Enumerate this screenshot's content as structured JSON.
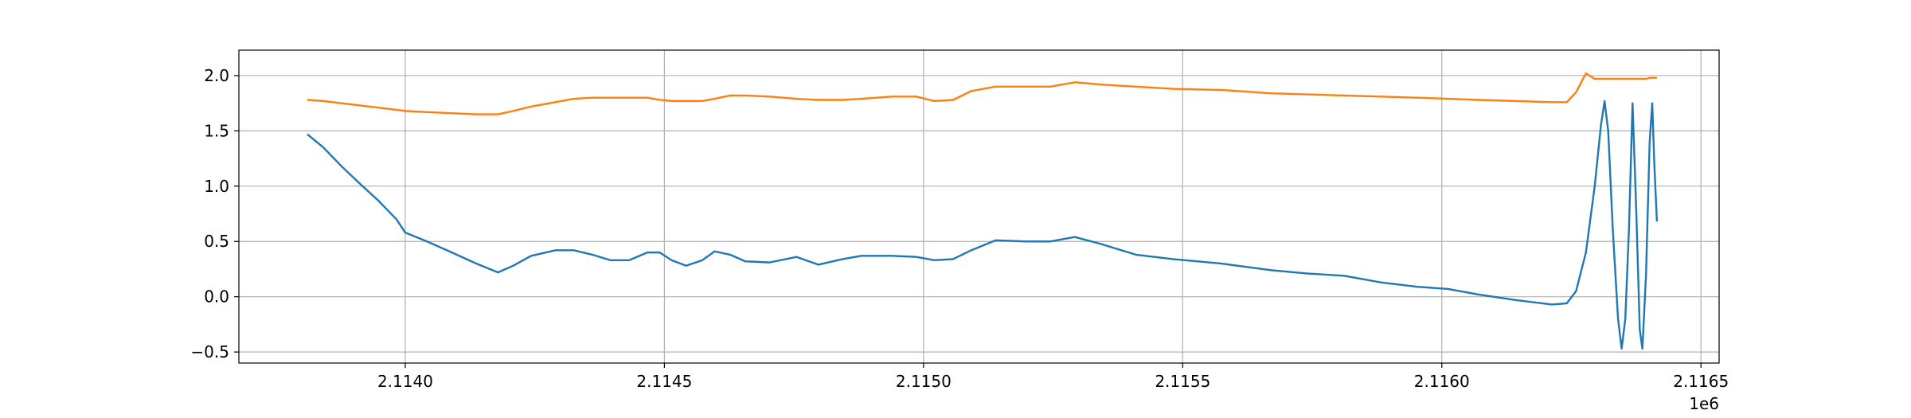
{
  "chart_data": {
    "type": "line",
    "x": [
      2113811,
      2113842,
      2113877,
      2113913,
      2113948,
      2113983,
      2114000,
      2114042,
      2114090,
      2114137,
      2114179,
      2114208,
      2114243,
      2114290,
      2114325,
      2114361,
      2114396,
      2114432,
      2114467,
      2114491,
      2114514,
      2114542,
      2114573,
      2114597,
      2114627,
      2114656,
      2114703,
      2114755,
      2114797,
      2114844,
      2114880,
      2114939,
      2114986,
      2115021,
      2115057,
      2115092,
      2115139,
      2115198,
      2115245,
      2115292,
      2115340,
      2115410,
      2115481,
      2115575,
      2115670,
      2115741,
      2115811,
      2115882,
      2115953,
      2116012,
      2116071,
      2116142,
      2116212,
      2116241,
      2116259,
      2116278,
      2116295,
      2116307,
      2116314,
      2116321,
      2116330,
      2116340,
      2116347,
      2116354,
      2116361,
      2116368,
      2116375,
      2116382,
      2116387,
      2116394,
      2116401,
      2116406,
      2116410,
      2116415
    ],
    "series": [
      {
        "color": "#1f77b4",
        "values": [
          1.47,
          1.35,
          1.18,
          1.02,
          0.87,
          0.7,
          0.58,
          0.5,
          0.4,
          0.3,
          0.22,
          0.28,
          0.37,
          0.42,
          0.42,
          0.38,
          0.33,
          0.33,
          0.4,
          0.4,
          0.33,
          0.28,
          0.33,
          0.41,
          0.38,
          0.32,
          0.31,
          0.36,
          0.29,
          0.34,
          0.37,
          0.37,
          0.36,
          0.33,
          0.34,
          0.42,
          0.51,
          0.5,
          0.5,
          0.54,
          0.48,
          0.38,
          0.34,
          0.3,
          0.24,
          0.21,
          0.19,
          0.13,
          0.09,
          0.07,
          0.02,
          -0.03,
          -0.07,
          -0.06,
          0.05,
          0.4,
          1.0,
          1.55,
          1.77,
          1.5,
          0.6,
          -0.2,
          -0.47,
          -0.2,
          0.6,
          1.75,
          0.8,
          -0.3,
          -0.47,
          0.2,
          1.4,
          1.75,
          1.2,
          0.68
        ]
      },
      {
        "color": "#ff7f0e",
        "values": [
          1.78,
          1.77,
          1.75,
          1.73,
          1.71,
          1.69,
          1.68,
          1.67,
          1.66,
          1.65,
          1.65,
          1.68,
          1.72,
          1.76,
          1.79,
          1.8,
          1.8,
          1.8,
          1.8,
          1.78,
          1.77,
          1.77,
          1.77,
          1.79,
          1.82,
          1.82,
          1.81,
          1.79,
          1.78,
          1.78,
          1.79,
          1.81,
          1.81,
          1.77,
          1.78,
          1.86,
          1.9,
          1.9,
          1.9,
          1.94,
          1.92,
          1.9,
          1.88,
          1.87,
          1.84,
          1.83,
          1.82,
          1.81,
          1.8,
          1.79,
          1.78,
          1.77,
          1.76,
          1.76,
          1.85,
          2.02,
          1.97,
          1.97,
          1.97,
          1.97,
          1.97,
          1.97,
          1.97,
          1.97,
          1.97,
          1.97,
          1.97,
          1.97,
          1.97,
          1.97,
          1.98,
          1.98,
          1.98,
          1.98
        ]
      }
    ],
    "xlim": [
      2113679,
      2116535
    ],
    "xticks": [
      {
        "value": 2114000,
        "label": "2.1140"
      },
      {
        "value": 2114500,
        "label": "2.1145"
      },
      {
        "value": 2115000,
        "label": "2.1150"
      },
      {
        "value": 2115500,
        "label": "2.1155"
      },
      {
        "value": 2116000,
        "label": "2.1160"
      },
      {
        "value": 2116500,
        "label": "2.1165"
      }
    ],
    "x_offset_label": "1e6",
    "ylim": [
      -0.6,
      2.23
    ],
    "yticks": [
      {
        "value": -0.5,
        "label": "−0.5"
      },
      {
        "value": 0,
        "label": "0.0"
      },
      0.5,
      {
        "value": 1,
        "label": "1.0"
      },
      1.5,
      {
        "value": 2,
        "label": "2.0"
      }
    ],
    "grid": true
  }
}
